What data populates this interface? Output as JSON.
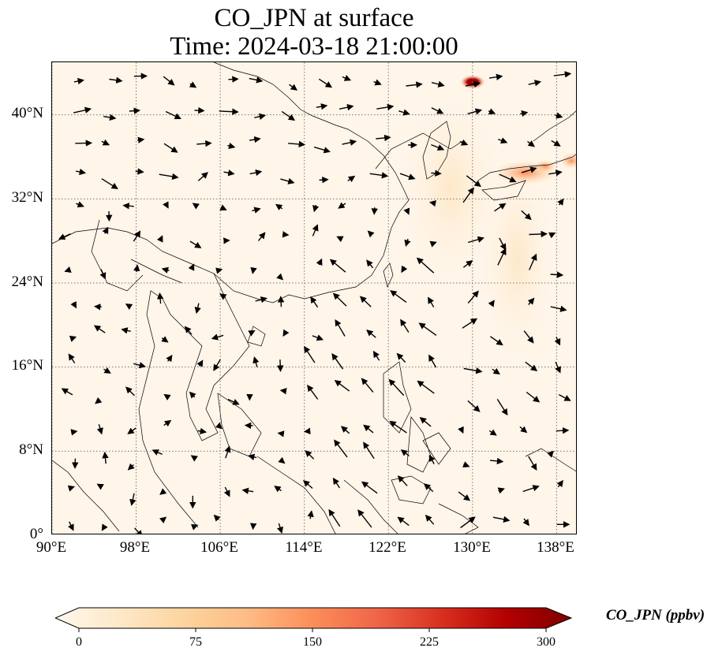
{
  "title": {
    "line1": "CO_JPN at surface",
    "line2": "Time: 2024-03-18 21:00:00"
  },
  "map": {
    "lon_range": [
      90,
      140
    ],
    "lat_range": [
      0,
      45
    ],
    "lat_ticks": [
      "40°N",
      "32°N",
      "24°N",
      "16°N",
      "8°N",
      "0°"
    ],
    "lon_ticks": [
      "90°E",
      "98°E",
      "106°E",
      "114°E",
      "122°E",
      "130°E",
      "138°E"
    ],
    "gridlines": "dotted",
    "background_color": "#fff5e9"
  },
  "colorbar": {
    "label": "CO_JPN (ppbv)",
    "ticks": [
      "0",
      "75",
      "150",
      "225",
      "300"
    ],
    "range": [
      0,
      300
    ],
    "colormap": "OrRd",
    "colors": [
      "#fff7ec",
      "#fee8c8",
      "#fdd49e",
      "#fdbb84",
      "#fc8d59",
      "#ef6548",
      "#d7301f",
      "#b30000",
      "#7f0000"
    ]
  }
}
